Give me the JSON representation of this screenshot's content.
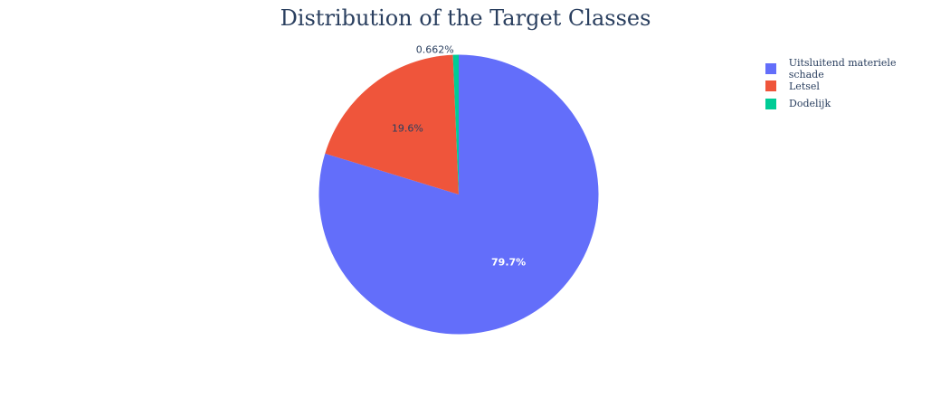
{
  "chart_data": {
    "type": "pie",
    "title": "Distribution of the Target Classes",
    "slices": [
      {
        "label": "Uitsluitend materiele schade",
        "value": 79.7,
        "text": "79.7%",
        "color": "#636efa",
        "text_color": "#ffffff"
      },
      {
        "label": "Letsel",
        "value": 19.6,
        "text": "19.6%",
        "color": "#ef553b",
        "text_color": "#2a3f5f"
      },
      {
        "label": "Dodelijk",
        "value": 0.662,
        "text": "0.662%",
        "color": "#00cc96",
        "text_color": "#2a3f5f"
      }
    ],
    "legend_placement": "top-right",
    "sort": "descending",
    "direction": "clockwise",
    "start_angle": "top"
  }
}
